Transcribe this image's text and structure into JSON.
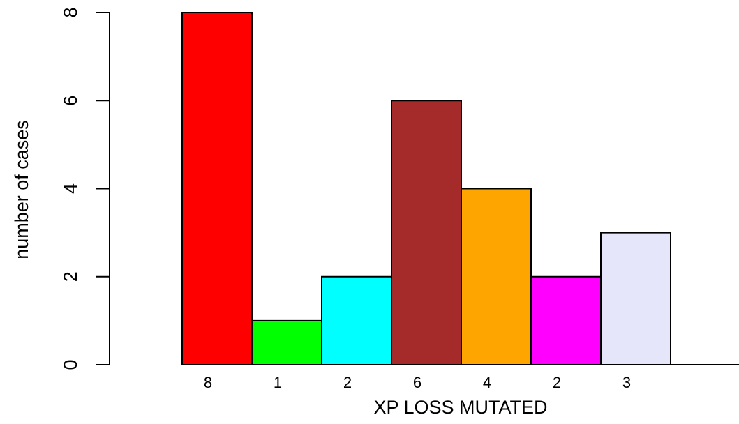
{
  "chart_data": {
    "type": "bar",
    "title": "",
    "xlabel": "XP LOSS MUTATED",
    "ylabel": "number of cases",
    "ylim": [
      0,
      8
    ],
    "yticks": [
      0,
      2,
      4,
      6,
      8
    ],
    "grid": false,
    "legend": "none",
    "bars": [
      {
        "label": "8",
        "value": 8,
        "color": "#ff0000"
      },
      {
        "label": "1",
        "value": 1,
        "color": "#00ff00"
      },
      {
        "label": "2",
        "value": 2,
        "color": "#00ffff"
      },
      {
        "label": "6",
        "value": 6,
        "color": "#a52a2a"
      },
      {
        "label": "4",
        "value": 4,
        "color": "#ffa500"
      },
      {
        "label": "2",
        "value": 2,
        "color": "#ff00ff"
      },
      {
        "label": "3",
        "value": 3,
        "color": "#e6e6fa"
      }
    ]
  }
}
